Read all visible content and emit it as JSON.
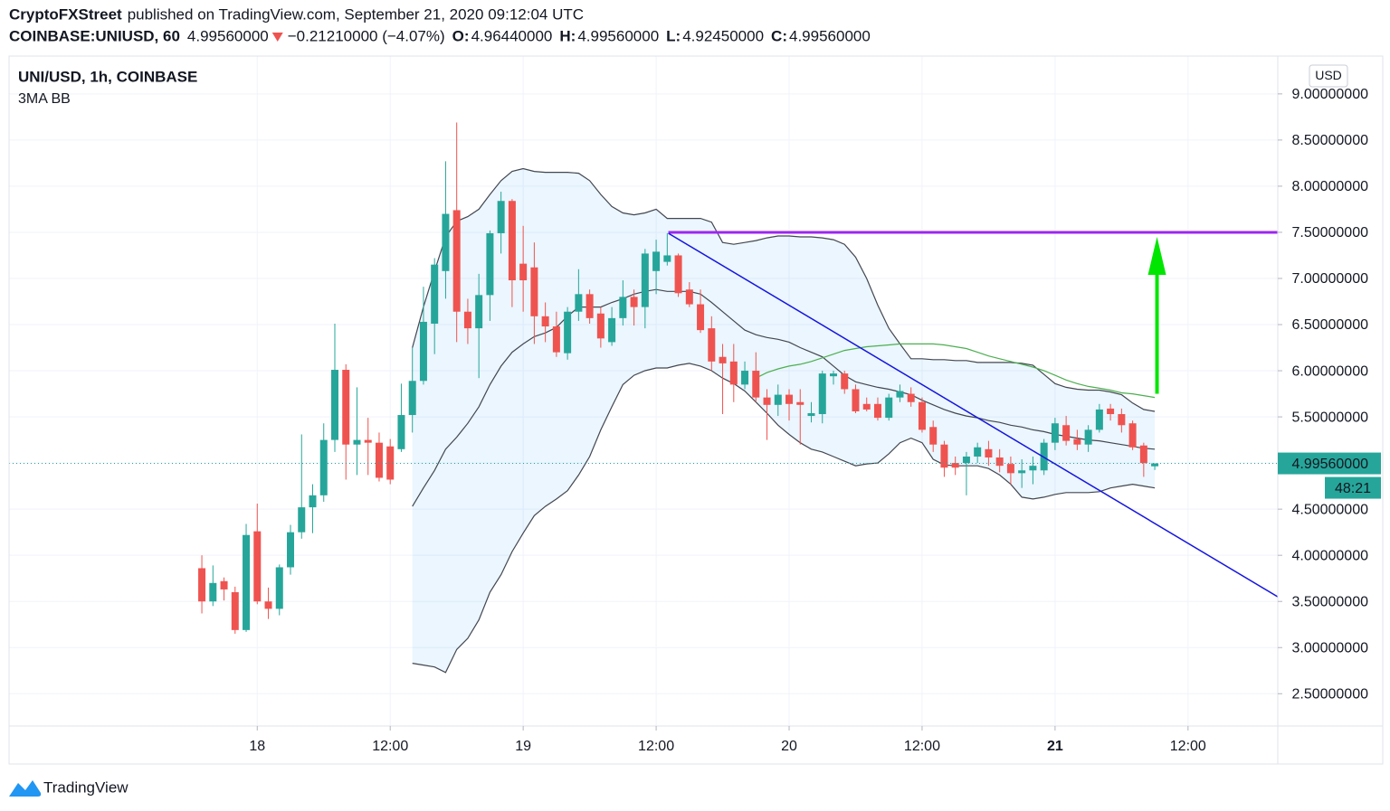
{
  "header": {
    "publisher": "CryptoFXStreet",
    "published": "published on TradingView.com, September 21, 2020 09:12:04 UTC",
    "symbol": "COINBASE:UNIUSD, 60",
    "last": "4.99560000",
    "change": "−0.21210000 (−4.07%)",
    "ohlc": [
      {
        "key": "O:",
        "value": "4.96440000"
      },
      {
        "key": "H:",
        "value": "4.99560000"
      },
      {
        "key": "L:",
        "value": "4.92450000"
      },
      {
        "key": "C:",
        "value": "4.99560000"
      }
    ]
  },
  "chart_data": {
    "type": "candlestick",
    "title": "UNI/USD, 1h, COINBASE",
    "indicator": "3MA BB",
    "currency": "USD",
    "ylim": [
      2.15,
      9.41
    ],
    "yticks": [
      {
        "value": 2.5,
        "label": "2.50000000"
      },
      {
        "value": 3.0,
        "label": "3.00000000"
      },
      {
        "value": 3.5,
        "label": "3.50000000"
      },
      {
        "value": 4.0,
        "label": "4.00000000"
      },
      {
        "value": 4.5,
        "label": "4.50000000"
      },
      {
        "value": 5.0,
        "label": "5.00000000"
      },
      {
        "value": 5.5,
        "label": "5.50000000"
      },
      {
        "value": 6.0,
        "label": "6.00000000"
      },
      {
        "value": 6.5,
        "label": "6.50000000"
      },
      {
        "value": 7.0,
        "label": "7.00000000"
      },
      {
        "value": 7.5,
        "label": "7.50000000"
      },
      {
        "value": 8.0,
        "label": "8.00000000"
      },
      {
        "value": 8.5,
        "label": "8.50000000"
      },
      {
        "value": 9.0,
        "label": "9.00000000"
      }
    ],
    "xlim": [
      -17.4,
      97.1
    ],
    "xticks": [
      {
        "value": 5,
        "label": "18"
      },
      {
        "value": 17,
        "label": "12:00"
      },
      {
        "value": 29,
        "label": "19"
      },
      {
        "value": 41,
        "label": "12:00"
      },
      {
        "value": 53,
        "label": "20"
      },
      {
        "value": 65,
        "label": "12:00"
      },
      {
        "value": 77,
        "label": "21",
        "bold": true
      },
      {
        "value": 89,
        "label": "12:00"
      }
    ],
    "grid": true,
    "up_color": "#26a69a",
    "down_color": "#ef5350",
    "open": [
      3.86,
      3.5,
      3.72,
      3.6,
      3.19,
      4.26,
      3.5,
      3.42,
      3.87,
      4.25,
      4.52,
      4.65,
      5.25,
      6.01,
      5.2,
      5.25,
      5.22,
      5.18,
      5.15,
      5.52,
      5.89,
      6.51,
      7.08,
      7.74,
      6.64,
      6.46,
      6.82,
      7.49,
      7.84,
      7.16,
      7.12,
      6.59,
      6.48,
      6.19,
      6.64,
      6.83,
      6.62,
      6.31,
      6.57,
      6.8,
      6.69,
      7.08,
      7.18,
      7.25,
      6.88,
      6.72,
      6.46,
      6.15,
      6.1,
      5.85,
      6.0,
      5.71,
      5.63,
      5.74,
      5.66,
      5.51,
      5.53,
      5.94,
      5.97,
      5.8,
      5.64,
      5.64,
      5.49,
      5.71,
      5.75,
      5.66,
      5.39,
      5.2,
      5.0,
      5.0,
      5.07,
      5.15,
      5.06,
      4.99,
      4.89,
      4.92,
      4.92,
      5.22,
      5.41,
      5.26,
      5.2,
      5.36,
      5.59,
      5.53,
      5.43,
      5.19,
      4.9644
    ],
    "high": [
      4.0,
      3.89,
      3.76,
      3.66,
      4.34,
      4.56,
      3.65,
      3.9,
      4.33,
      5.31,
      4.77,
      5.43,
      6.51,
      6.07,
      5.82,
      5.49,
      5.33,
      5.26,
      5.86,
      6.25,
      6.91,
      7.22,
      8.27,
      8.69,
      6.78,
      7.05,
      7.52,
      7.94,
      7.86,
      7.57,
      7.39,
      6.74,
      6.64,
      6.69,
      7.1,
      6.88,
      6.69,
      6.69,
      6.98,
      6.88,
      7.32,
      7.42,
      7.49,
      7.27,
      6.96,
      6.88,
      6.59,
      6.29,
      6.29,
      6.1,
      6.2,
      5.8,
      5.85,
      5.8,
      5.8,
      5.66,
      6.0,
      6.0,
      6.0,
      5.85,
      5.71,
      5.71,
      5.75,
      5.85,
      5.82,
      5.71,
      5.46,
      5.24,
      5.07,
      5.12,
      5.22,
      5.24,
      5.15,
      5.07,
      5.04,
      5.07,
      5.26,
      5.49,
      5.51,
      5.36,
      5.41,
      5.64,
      5.64,
      5.59,
      5.46,
      5.22,
      4.9956
    ],
    "low": [
      3.37,
      3.45,
      3.51,
      3.15,
      3.17,
      3.47,
      3.31,
      3.35,
      3.79,
      4.18,
      4.24,
      4.58,
      5.12,
      4.82,
      4.87,
      4.87,
      4.8,
      4.77,
      5.12,
      5.33,
      5.85,
      6.18,
      6.78,
      6.31,
      6.29,
      5.92,
      6.54,
      7.27,
      6.69,
      6.64,
      6.29,
      6.31,
      6.15,
      6.12,
      6.54,
      6.51,
      6.25,
      6.27,
      6.49,
      6.49,
      6.46,
      6.83,
      7.14,
      6.8,
      6.69,
      6.41,
      6.0,
      5.53,
      5.66,
      5.8,
      5.66,
      5.25,
      5.51,
      5.46,
      5.2,
      5.44,
      5.43,
      5.85,
      5.75,
      5.54,
      5.56,
      5.46,
      5.46,
      5.66,
      5.61,
      5.33,
      5.12,
      4.85,
      4.87,
      4.65,
      5.0,
      4.97,
      4.9,
      4.77,
      4.73,
      4.77,
      4.87,
      5.14,
      5.19,
      5.14,
      5.12,
      5.33,
      5.46,
      5.33,
      5.14,
      4.85,
      4.9245
    ],
    "close": [
      3.5,
      3.7,
      3.63,
      3.19,
      4.22,
      3.5,
      3.42,
      3.87,
      4.25,
      4.52,
      4.65,
      5.25,
      6.01,
      5.2,
      5.25,
      5.22,
      4.84,
      4.82,
      5.52,
      5.89,
      6.53,
      7.15,
      7.7,
      6.64,
      6.46,
      6.82,
      7.49,
      7.84,
      6.98,
      6.98,
      6.59,
      6.48,
      6.2,
      6.64,
      6.83,
      6.57,
      6.35,
      6.57,
      6.8,
      6.69,
      7.27,
      7.29,
      7.25,
      6.84,
      6.72,
      6.44,
      6.1,
      6.08,
      5.85,
      6.0,
      5.71,
      5.63,
      5.74,
      5.64,
      5.63,
      5.54,
      5.97,
      5.97,
      5.8,
      5.56,
      5.58,
      5.49,
      5.71,
      5.78,
      5.66,
      5.36,
      5.2,
      4.95,
      4.95,
      5.07,
      5.17,
      5.06,
      4.97,
      4.89,
      4.92,
      4.97,
      5.22,
      5.43,
      5.24,
      5.2,
      5.36,
      5.58,
      5.53,
      5.41,
      5.17,
      5.0,
      4.9956
    ],
    "band_fill": "rgba(33,150,243,0.09)",
    "bands": [
      {
        "color": "#434651",
        "values": [
          null,
          null,
          null,
          null,
          null,
          null,
          null,
          null,
          null,
          null,
          null,
          null,
          null,
          null,
          null,
          null,
          null,
          null,
          null,
          6.25,
          6.69,
          7.08,
          7.45,
          7.62,
          7.67,
          7.75,
          7.91,
          8.06,
          8.16,
          8.19,
          8.16,
          8.15,
          8.15,
          8.15,
          8.14,
          8.06,
          7.91,
          7.78,
          7.71,
          7.69,
          7.71,
          7.75,
          7.65,
          7.65,
          7.65,
          7.65,
          7.61,
          7.39,
          7.37,
          7.39,
          7.41,
          7.44,
          7.46,
          7.46,
          7.45,
          7.45,
          7.44,
          7.42,
          7.37,
          7.23,
          7.0,
          6.71,
          6.46,
          6.29,
          6.13,
          6.13,
          6.12,
          6.12,
          6.11,
          6.11,
          6.09,
          6.09,
          6.09,
          6.09,
          6.08,
          6.06,
          5.96,
          5.86,
          5.82,
          5.8,
          5.79,
          5.79,
          5.77,
          5.74,
          5.65,
          5.58,
          5.56
        ]
      },
      {
        "color": "#434651",
        "values": [
          null,
          null,
          null,
          null,
          null,
          null,
          null,
          null,
          null,
          null,
          null,
          null,
          null,
          null,
          null,
          null,
          null,
          null,
          null,
          4.53,
          4.73,
          4.92,
          5.15,
          5.28,
          5.43,
          5.61,
          5.85,
          6.05,
          6.2,
          6.29,
          6.37,
          6.41,
          6.47,
          6.59,
          6.69,
          6.69,
          6.69,
          6.74,
          6.78,
          6.83,
          6.86,
          6.88,
          6.86,
          6.86,
          6.86,
          6.83,
          6.74,
          6.64,
          6.54,
          6.44,
          6.39,
          6.36,
          6.34,
          6.31,
          6.25,
          6.2,
          6.15,
          6.05,
          5.95,
          5.88,
          5.85,
          5.82,
          5.8,
          5.77,
          5.74,
          5.68,
          5.63,
          5.58,
          5.54,
          5.51,
          5.49,
          5.46,
          5.44,
          5.41,
          5.39,
          5.36,
          5.34,
          5.31,
          5.29,
          5.27,
          5.25,
          5.24,
          5.22,
          5.2,
          5.18,
          5.16,
          5.15
        ]
      },
      {
        "color": "#434651",
        "values": [
          null,
          null,
          null,
          null,
          null,
          null,
          null,
          null,
          null,
          null,
          null,
          null,
          null,
          null,
          null,
          null,
          null,
          null,
          null,
          2.83,
          2.81,
          2.79,
          2.73,
          2.98,
          3.1,
          3.3,
          3.6,
          3.79,
          4.04,
          4.24,
          4.43,
          4.53,
          4.61,
          4.7,
          4.87,
          5.07,
          5.36,
          5.61,
          5.85,
          5.95,
          6.0,
          6.03,
          6.03,
          6.06,
          6.08,
          6.05,
          6.0,
          5.92,
          5.86,
          5.78,
          5.66,
          5.54,
          5.41,
          5.31,
          5.22,
          5.15,
          5.12,
          5.07,
          5.02,
          4.97,
          4.99,
          5.0,
          5.1,
          5.22,
          5.27,
          5.22,
          5.04,
          4.98,
          4.97,
          4.97,
          4.97,
          4.94,
          4.87,
          4.77,
          4.63,
          4.61,
          4.63,
          4.66,
          4.68,
          4.68,
          4.68,
          4.69,
          4.73,
          4.75,
          4.77,
          4.75,
          4.73
        ]
      }
    ],
    "ma": {
      "color": "#4caf50",
      "values": [
        null,
        null,
        null,
        null,
        null,
        null,
        null,
        null,
        null,
        null,
        null,
        null,
        null,
        null,
        null,
        null,
        null,
        null,
        null,
        null,
        null,
        null,
        null,
        null,
        null,
        null,
        null,
        null,
        null,
        null,
        null,
        null,
        null,
        null,
        null,
        null,
        null,
        null,
        null,
        null,
        null,
        null,
        null,
        null,
        null,
        null,
        null,
        null,
        null,
        null,
        5.92,
        5.98,
        6.02,
        6.05,
        6.07,
        6.1,
        6.14,
        6.18,
        6.22,
        6.24,
        6.26,
        6.27,
        6.28,
        6.29,
        6.29,
        6.29,
        6.29,
        6.28,
        6.26,
        6.24,
        6.2,
        6.16,
        6.13,
        6.1,
        6.07,
        6.04,
        6.0,
        5.95,
        5.9,
        5.86,
        5.83,
        5.81,
        5.79,
        5.76,
        5.75,
        5.73,
        5.71
      ]
    },
    "last_price": {
      "label": "4.99560000",
      "countdown": "48:21",
      "color": "#26a69a"
    },
    "annotations": {
      "hline": {
        "value": 7.5,
        "x_start": 42.1,
        "color": "#9c27f0"
      },
      "trendline": {
        "x": [
          42.1,
          97.1
        ],
        "y": [
          7.49,
          3.55
        ],
        "color": "#1515e0"
      },
      "arrow": {
        "x": 86.2,
        "y": [
          5.75,
          7.45
        ],
        "color": "#00e600"
      }
    }
  },
  "footer": {
    "brand": "TradingView"
  }
}
